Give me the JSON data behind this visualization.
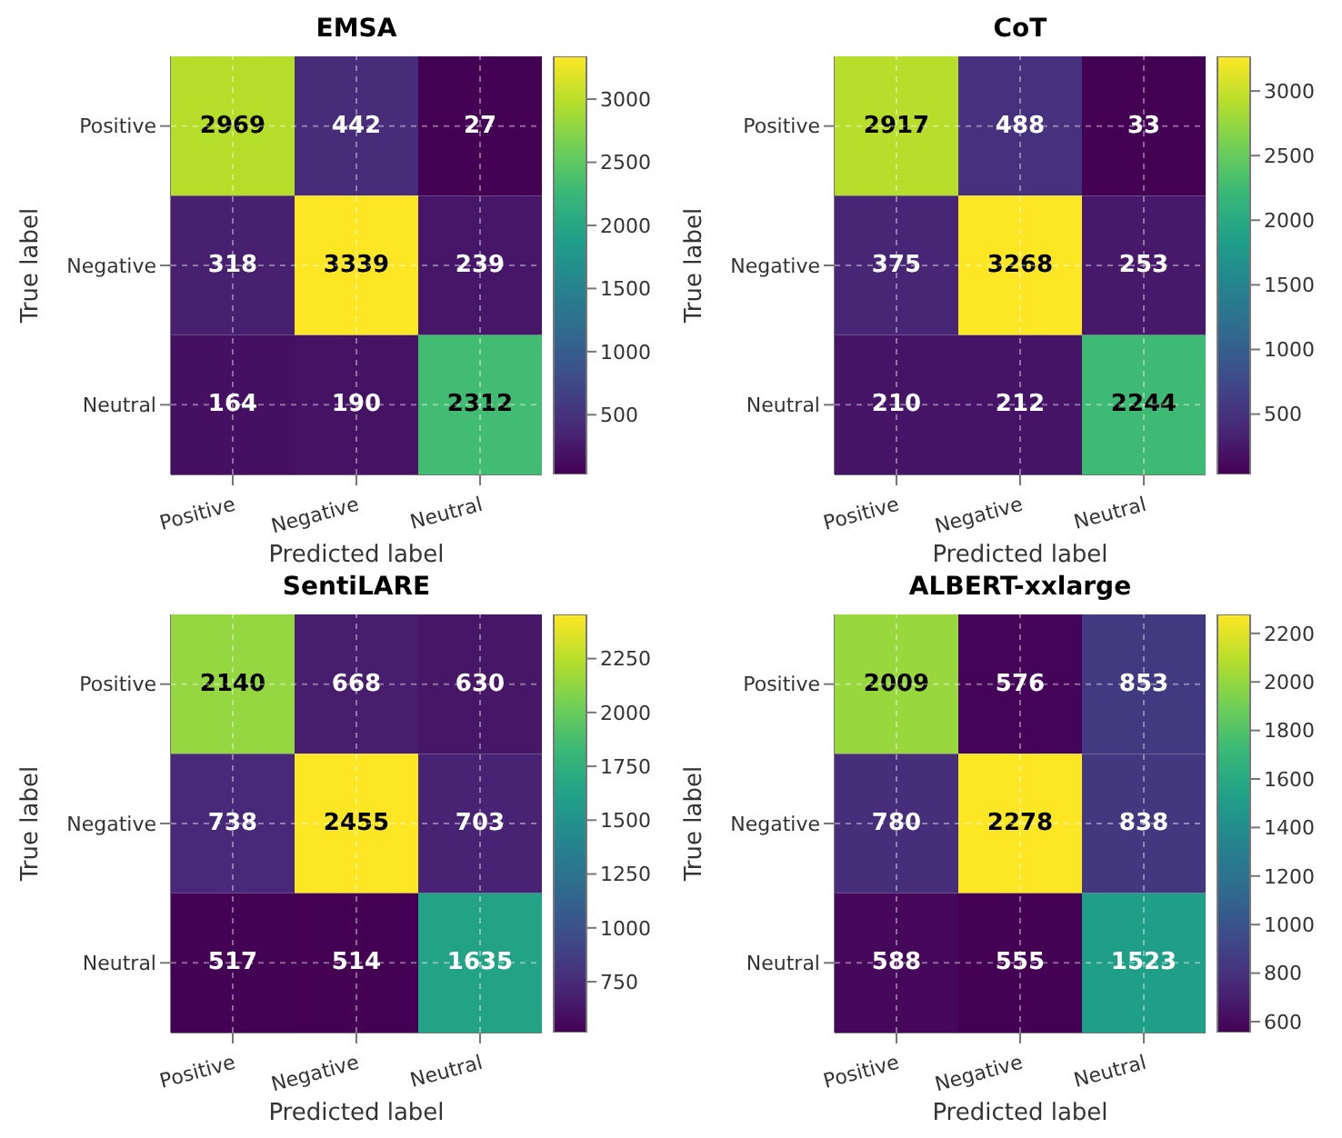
{
  "chart_data": [
    {
      "type": "heatmap",
      "title": "EMSA",
      "xlabel": "Predicted label",
      "ylabel": "True label",
      "categories": [
        "Positive",
        "Negative",
        "Neutral"
      ],
      "y_categories": [
        "Positive",
        "Negative",
        "Neutral"
      ],
      "cells": [
        [
          2969,
          442,
          27
        ],
        [
          318,
          3339,
          239
        ],
        [
          164,
          190,
          2312
        ]
      ],
      "clim": [
        27,
        3339
      ],
      "cticks": [
        500,
        1000,
        1500,
        2000,
        2500,
        3000
      ],
      "data_labels": true,
      "grid": true
    },
    {
      "type": "heatmap",
      "title": "CoT",
      "xlabel": "Predicted label",
      "ylabel": "True label",
      "categories": [
        "Positive",
        "Negative",
        "Neutral"
      ],
      "y_categories": [
        "Positive",
        "Negative",
        "Neutral"
      ],
      "cells": [
        [
          2917,
          488,
          33
        ],
        [
          375,
          3268,
          253
        ],
        [
          210,
          212,
          2244
        ]
      ],
      "clim": [
        33,
        3268
      ],
      "cticks": [
        500,
        1000,
        1500,
        2000,
        2500,
        3000
      ],
      "data_labels": true,
      "grid": true
    },
    {
      "type": "heatmap",
      "title": "SentiLARE",
      "xlabel": "Predicted label",
      "ylabel": "True label",
      "categories": [
        "Positive",
        "Negative",
        "Neutral"
      ],
      "y_categories": [
        "Positive",
        "Negative",
        "Neutral"
      ],
      "cells": [
        [
          2140,
          668,
          630
        ],
        [
          738,
          2455,
          703
        ],
        [
          517,
          514,
          1635
        ]
      ],
      "clim": [
        514,
        2455
      ],
      "cticks": [
        750,
        1000,
        1250,
        1500,
        1750,
        2000,
        2250
      ],
      "data_labels": true,
      "grid": true
    },
    {
      "type": "heatmap",
      "title": "ALBERT-xxlarge",
      "xlabel": "Predicted label",
      "ylabel": "True label",
      "categories": [
        "Positive",
        "Negative",
        "Neutral"
      ],
      "y_categories": [
        "Positive",
        "Negative",
        "Neutral"
      ],
      "cells": [
        [
          2009,
          576,
          853
        ],
        [
          780,
          2278,
          838
        ],
        [
          588,
          555,
          1523
        ]
      ],
      "clim": [
        555,
        2278
      ],
      "cticks": [
        600,
        800,
        1000,
        1200,
        1400,
        1600,
        1800,
        2000,
        2200
      ],
      "data_labels": true,
      "grid": true
    }
  ]
}
